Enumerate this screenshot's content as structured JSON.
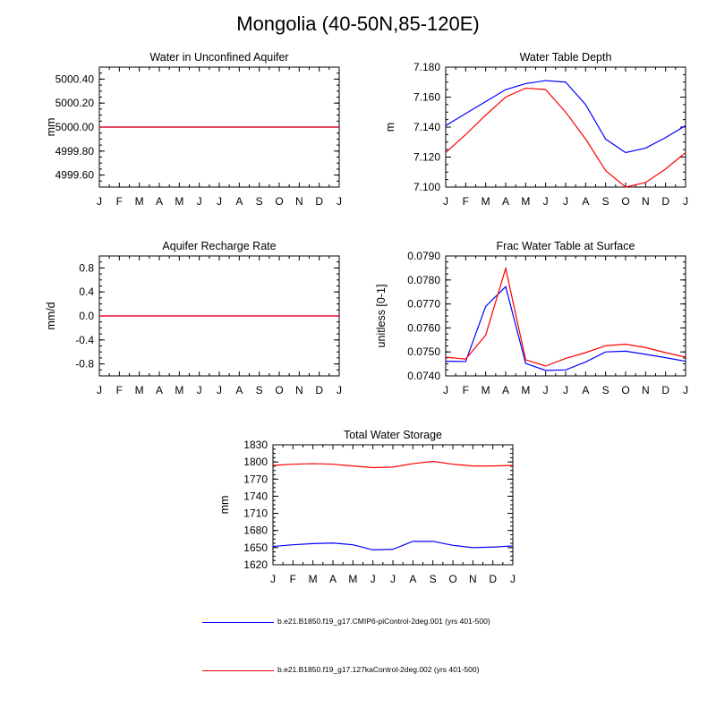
{
  "title": "Mongolia (40-50N,85-120E)",
  "colors": {
    "series1": "#0000ff",
    "series2": "#ff0000"
  },
  "legend": [
    {
      "label": "b.e21.B1850.f19_g17.CMIP6-piControl-2deg.001 (yrs 401-500)",
      "color": "#0000ff"
    },
    {
      "label": "b.e21.B1850.f19_g17.127kaControl-2deg.002 (yrs 401-500)",
      "color": "#ff0000"
    }
  ],
  "chart_data": [
    {
      "type": "line",
      "title": "Water in Unconfined Aquifer",
      "ylabel": "mm",
      "xlabel": "",
      "categories": [
        "J",
        "F",
        "M",
        "A",
        "M",
        "J",
        "J",
        "A",
        "S",
        "O",
        "N",
        "D",
        "J"
      ],
      "ylim": [
        4999.5,
        5000.5
      ],
      "yticks": [
        4999.6,
        4999.8,
        5000.0,
        5000.2,
        5000.4
      ],
      "ytick_labels": [
        "4999.60",
        "4999.80",
        "5000.00",
        "5000.20",
        "5000.40"
      ],
      "series": [
        {
          "color": "#0000ff",
          "values": [
            5000,
            5000,
            5000,
            5000,
            5000,
            5000,
            5000,
            5000,
            5000,
            5000,
            5000,
            5000,
            5000
          ]
        },
        {
          "color": "#ff0000",
          "values": [
            5000,
            5000,
            5000,
            5000,
            5000,
            5000,
            5000,
            5000,
            5000,
            5000,
            5000,
            5000,
            5000
          ]
        }
      ]
    },
    {
      "type": "line",
      "title": "Water Table Depth",
      "ylabel": "m",
      "xlabel": "",
      "categories": [
        "J",
        "F",
        "M",
        "A",
        "M",
        "J",
        "J",
        "A",
        "S",
        "O",
        "N",
        "D",
        "J"
      ],
      "ylim": [
        7.1,
        7.18
      ],
      "yticks": [
        7.1,
        7.12,
        7.14,
        7.16,
        7.18
      ],
      "ytick_labels": [
        "7.100",
        "7.120",
        "7.140",
        "7.160",
        "7.180"
      ],
      "series": [
        {
          "color": "#0000ff",
          "values": [
            7.141,
            7.149,
            7.157,
            7.165,
            7.169,
            7.171,
            7.17,
            7.155,
            7.132,
            7.123,
            7.126,
            7.133,
            7.141
          ]
        },
        {
          "color": "#ff0000",
          "values": [
            7.123,
            7.135,
            7.148,
            7.16,
            7.166,
            7.165,
            7.15,
            7.132,
            7.111,
            7.1,
            7.103,
            7.112,
            7.123
          ]
        }
      ]
    },
    {
      "type": "line",
      "title": "Aquifer Recharge Rate",
      "ylabel": "mm/d",
      "xlabel": "",
      "categories": [
        "J",
        "F",
        "M",
        "A",
        "M",
        "J",
        "J",
        "A",
        "S",
        "O",
        "N",
        "D",
        "J"
      ],
      "ylim": [
        -1,
        1
      ],
      "yticks": [
        -0.8,
        -0.4,
        0,
        0.4,
        0.8
      ],
      "ytick_labels": [
        "-0.8",
        "-0.4",
        "0.0",
        "0.4",
        "0.8"
      ],
      "series": [
        {
          "color": "#0000ff",
          "values": [
            0,
            0,
            0,
            0,
            0,
            0,
            0,
            0,
            0,
            0,
            0,
            0,
            0
          ]
        },
        {
          "color": "#ff0000",
          "values": [
            0,
            0,
            0,
            0,
            0,
            0,
            0,
            0,
            0,
            0,
            0,
            0,
            0
          ]
        }
      ]
    },
    {
      "type": "line",
      "title": "Frac Water Table at Surface",
      "ylabel": "unitless [0-1]",
      "xlabel": "",
      "categories": [
        "J",
        "F",
        "M",
        "A",
        "M",
        "J",
        "J",
        "A",
        "S",
        "O",
        "N",
        "D",
        "J"
      ],
      "ylim": [
        0.074,
        0.079
      ],
      "yticks": [
        0.074,
        0.075,
        0.076,
        0.077,
        0.078,
        0.079
      ],
      "ytick_labels": [
        "0.0740",
        "0.0750",
        "0.0760",
        "0.0770",
        "0.0780",
        "0.0790"
      ],
      "series": [
        {
          "color": "#0000ff",
          "values": [
            0.07461,
            0.0746,
            0.0769,
            0.07772,
            0.07452,
            0.07423,
            0.07425,
            0.07458,
            0.075,
            0.07503,
            0.0749,
            0.07476,
            0.07461
          ]
        },
        {
          "color": "#ff0000",
          "values": [
            0.07478,
            0.0747,
            0.0757,
            0.07848,
            0.07467,
            0.07441,
            0.07473,
            0.07497,
            0.07526,
            0.07532,
            0.07518,
            0.07497,
            0.07478
          ]
        }
      ]
    },
    {
      "type": "line",
      "title": "Total Water Storage",
      "ylabel": "mm",
      "xlabel": "",
      "categories": [
        "J",
        "F",
        "M",
        "A",
        "M",
        "J",
        "J",
        "A",
        "S",
        "O",
        "N",
        "D",
        "J"
      ],
      "ylim": [
        1620,
        1830
      ],
      "yticks": [
        1620,
        1650,
        1680,
        1710,
        1740,
        1770,
        1800,
        1830
      ],
      "ytick_labels": [
        "1620",
        "1650",
        "1680",
        "1710",
        "1740",
        "1770",
        "1800",
        "1830"
      ],
      "series": [
        {
          "color": "#0000ff",
          "values": [
            1652,
            1655,
            1657,
            1658,
            1655,
            1646,
            1647,
            1661,
            1661,
            1654,
            1650,
            1651,
            1653
          ]
        },
        {
          "color": "#ff0000",
          "values": [
            1794,
            1796,
            1797,
            1796,
            1793,
            1790,
            1791,
            1797,
            1801,
            1796,
            1793,
            1793,
            1794
          ]
        }
      ]
    }
  ]
}
